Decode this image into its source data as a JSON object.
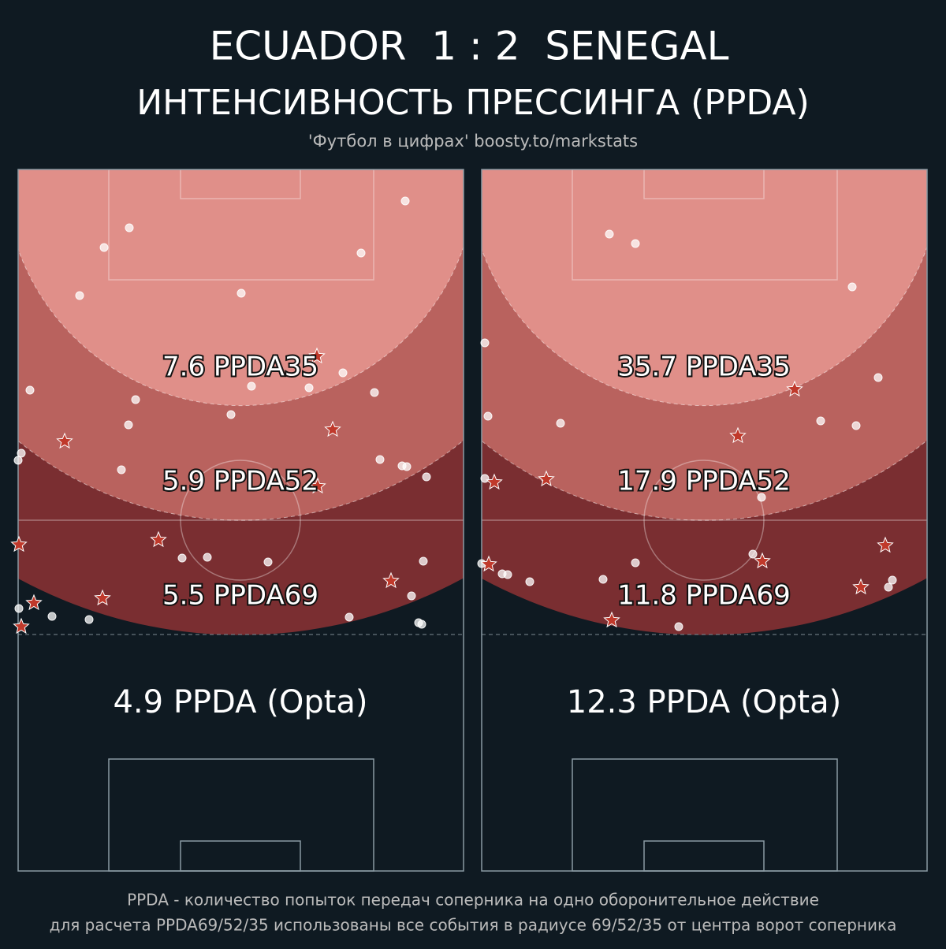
{
  "header": {
    "title": "ECUADOR  1 : 2  SENEGAL",
    "subtitle": "ИНТЕНСИВНОСТЬ ПРЕССИНГА (PPDA)",
    "credit": "'Футбол в цифрах' boosty.to/markstats"
  },
  "panels": [
    {
      "zone35": "7.6 PPDA35",
      "zone52": "5.9 PPDA52",
      "zone69": "5.5 PPDA69",
      "opta": "4.9 PPDA (Opta)"
    },
    {
      "zone35": "35.7 PPDA35",
      "zone52": "17.9 PPDA52",
      "zone69": "11.8 PPDA69",
      "opta": "12.3 PPDA (Opta)"
    }
  ],
  "footer": {
    "lines": [
      "PPDA - количество попыток передач соперника на одно оборонительное действие",
      "для расчета PPDA69/52/35 использованы все события в радиусе 69/52/35 от центра ворот соперника"
    ]
  }
}
